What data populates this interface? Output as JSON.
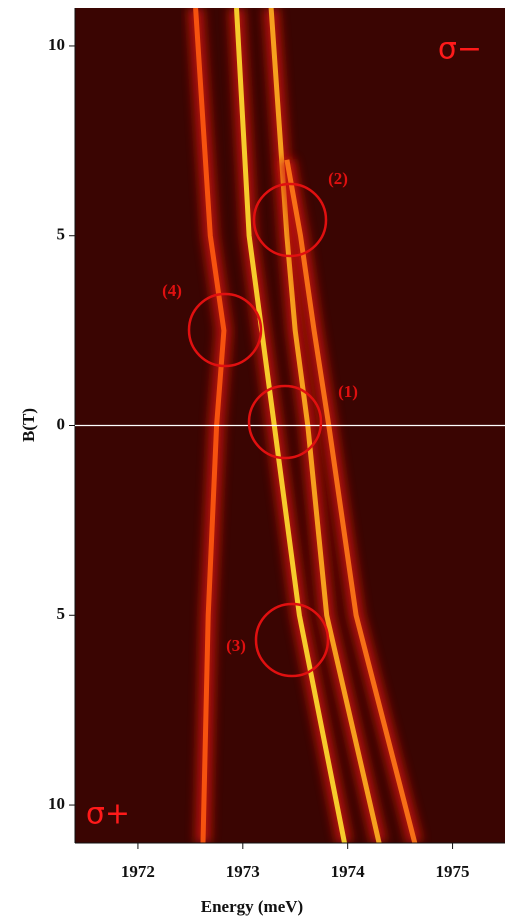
{
  "chart_data": {
    "type": "line",
    "xlabel": "Energy (meV)",
    "ylabel": "B(T)",
    "xlim": [
      1971.4,
      1975.5
    ],
    "ylim": [
      -11,
      11
    ],
    "xticks": [
      1972,
      1973,
      1974,
      1975
    ],
    "yticks": [
      {
        "value": 10,
        "label": "10"
      },
      {
        "value": 5,
        "label": "5"
      },
      0,
      {
        "value": -5,
        "label": "5"
      },
      {
        "value": -10,
        "label": "10"
      }
    ],
    "background": "#3a0502",
    "series": [
      {
        "color": "#ff5a10",
        "x": [
          1972.55,
          1972.69,
          1972.82,
          1972.75,
          1972.67,
          1972.62
        ],
        "values": [
          11,
          5,
          2.5,
          0,
          -5,
          -11
        ]
      },
      {
        "color": "#ffe030",
        "x": [
          1972.94,
          1973.06,
          1973.18,
          1973.3,
          1973.54,
          1973.97
        ],
        "values": [
          11,
          5,
          2.5,
          0,
          -5,
          -11
        ]
      },
      {
        "color": "#ffb020",
        "x": [
          1973.27,
          1973.42,
          1973.5,
          1973.62,
          1973.8,
          1974.3
        ],
        "values": [
          11,
          5,
          2.5,
          0,
          -5,
          -11
        ]
      },
      {
        "color": "#ff7a18",
        "x": [
          1973.42,
          1973.55,
          1973.68,
          1973.82,
          1974.08,
          1974.64
        ],
        "values": [
          7,
          5,
          2.5,
          0,
          -5,
          -11
        ]
      }
    ],
    "annotations": [
      "(1)",
      "(2)",
      "(3)",
      "(4)",
      "σ−",
      "σ+"
    ]
  }
}
